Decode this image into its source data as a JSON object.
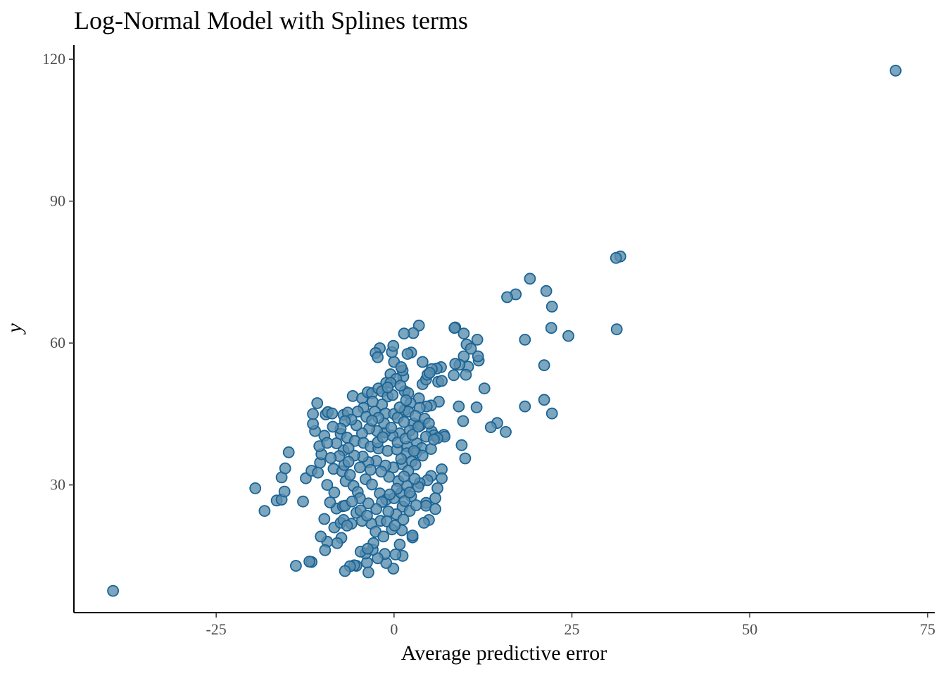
{
  "chart_data": {
    "type": "scatter",
    "title": "Log-Normal Model with Splines terms",
    "xlabel": "Average predictive error",
    "ylabel": "y",
    "xlim": [
      -45,
      76
    ],
    "ylim": [
      3,
      123
    ],
    "xticks": [
      -25,
      0,
      25,
      50,
      75
    ],
    "xtick_labels": [
      "-25",
      "0",
      "25",
      "50",
      "75"
    ],
    "yticks": [
      30,
      60,
      90,
      120
    ],
    "ytick_labels": [
      "30",
      "60",
      "90",
      "120"
    ],
    "grid": false,
    "legend": "none",
    "colors": {
      "point_fill": "#5b8fae",
      "point_stroke": "#1a6496",
      "axis": "#000000",
      "tick_text": "#4d4d4d"
    },
    "series": [
      {
        "points": [
          [
            70.5,
            117.6
          ],
          [
            -39.5,
            7.6
          ],
          [
            31.8,
            78.3
          ],
          [
            31.2,
            78.0
          ],
          [
            31.3,
            62.9
          ],
          [
            19.1,
            73.6
          ],
          [
            17.1,
            70.3
          ],
          [
            15.9,
            69.7
          ],
          [
            21.4,
            71.0
          ],
          [
            22.2,
            67.7
          ],
          [
            22.1,
            63.2
          ],
          [
            24.5,
            61.5
          ],
          [
            18.4,
            60.7
          ],
          [
            21.1,
            55.3
          ],
          [
            21.1,
            48.0
          ],
          [
            18.4,
            46.6
          ],
          [
            22.2,
            45.1
          ],
          [
            15.7,
            41.2
          ],
          [
            14.5,
            43.1
          ],
          [
            13.6,
            42.2
          ],
          [
            12.7,
            50.4
          ],
          [
            11.6,
            46.4
          ],
          [
            11.9,
            56.3
          ],
          [
            11.8,
            57.2
          ],
          [
            11.7,
            60.7
          ],
          [
            9.8,
            62.0
          ],
          [
            8.6,
            63.3
          ],
          [
            8.5,
            63.2
          ],
          [
            10.2,
            59.7
          ],
          [
            10.8,
            58.8
          ],
          [
            9.8,
            57.2
          ],
          [
            10.4,
            55.0
          ],
          [
            10.1,
            53.3
          ],
          [
            9.2,
            55.4
          ],
          [
            8.6,
            55.6
          ],
          [
            8.4,
            53.2
          ],
          [
            9.1,
            46.6
          ],
          [
            9.7,
            43.5
          ],
          [
            9.5,
            38.4
          ],
          [
            10.0,
            35.6
          ],
          [
            7.0,
            40.6
          ],
          [
            7.1,
            40.2
          ],
          [
            6.6,
            54.9
          ],
          [
            6.2,
            51.8
          ],
          [
            6.0,
            54.6
          ],
          [
            6.7,
            52.0
          ],
          [
            5.3,
            54.5
          ],
          [
            6.3,
            47.6
          ],
          [
            5.2,
            46.8
          ],
          [
            4.6,
            46.6
          ],
          [
            3.5,
            63.7
          ],
          [
            2.7,
            62.1
          ],
          [
            1.4,
            62.0
          ],
          [
            4.0,
            56.0
          ],
          [
            2.4,
            58.0
          ],
          [
            1.9,
            57.7
          ],
          [
            4.0,
            51.3
          ],
          [
            4.5,
            52.3
          ],
          [
            4.7,
            53.3
          ],
          [
            5.0,
            53.7
          ],
          [
            1.3,
            52.9
          ],
          [
            1.2,
            54.2
          ],
          [
            1.5,
            49.8
          ],
          [
            2.0,
            49.4
          ],
          [
            3.5,
            48.3
          ],
          [
            2.3,
            47.3
          ],
          [
            3.6,
            46.3
          ],
          [
            1.5,
            45.8
          ],
          [
            2.0,
            45.5
          ],
          [
            2.7,
            43.0
          ],
          [
            3.7,
            42.6
          ],
          [
            2.2,
            41.5
          ],
          [
            5.3,
            41.3
          ],
          [
            5.6,
            40.5
          ],
          [
            6.1,
            39.9
          ],
          [
            4.5,
            40.2
          ],
          [
            3.2,
            38.8
          ],
          [
            3.9,
            37.8
          ],
          [
            3.1,
            36.8
          ],
          [
            1.9,
            38.1
          ],
          [
            5.2,
            37.6
          ],
          [
            6.7,
            33.3
          ],
          [
            6.7,
            31.4
          ],
          [
            5.2,
            31.9
          ],
          [
            4.7,
            31.0
          ],
          [
            3.6,
            30.4
          ],
          [
            3.4,
            29.6
          ],
          [
            6.1,
            29.3
          ],
          [
            5.8,
            27.2
          ],
          [
            4.5,
            26.2
          ],
          [
            4.5,
            25.6
          ],
          [
            5.8,
            24.9
          ],
          [
            4.9,
            22.6
          ],
          [
            4.2,
            22.0
          ],
          [
            2.6,
            18.9
          ],
          [
            2.6,
            19.3
          ],
          [
            1.1,
            20.4
          ],
          [
            0.8,
            17.4
          ],
          [
            1.2,
            15.0
          ],
          [
            0.2,
            15.3
          ],
          [
            -0.1,
            12.3
          ],
          [
            -1.1,
            13.5
          ],
          [
            -1.3,
            15.4
          ],
          [
            -2.3,
            14.5
          ],
          [
            -3.0,
            16.3
          ],
          [
            -3.8,
            13.6
          ],
          [
            -3.6,
            11.5
          ],
          [
            -4.0,
            15.5
          ],
          [
            -4.7,
            15.9
          ],
          [
            -5.3,
            12.9
          ],
          [
            -5.6,
            13.0
          ],
          [
            -6.2,
            12.8
          ],
          [
            -6.9,
            11.8
          ],
          [
            -7.4,
            18.8
          ],
          [
            -8.0,
            17.7
          ],
          [
            -9.4,
            18.0
          ],
          [
            -9.7,
            16.2
          ],
          [
            -10.3,
            19.1
          ],
          [
            -11.6,
            13.7
          ],
          [
            -11.9,
            13.8
          ],
          [
            -13.8,
            12.9
          ],
          [
            -8.4,
            21.0
          ],
          [
            -7.5,
            22.0
          ],
          [
            -7.1,
            22.6
          ],
          [
            -8.1,
            25.0
          ],
          [
            -7.2,
            25.5
          ],
          [
            -6.9,
            25.6
          ],
          [
            -9.8,
            22.8
          ],
          [
            -12.8,
            26.5
          ],
          [
            -16.5,
            26.7
          ],
          [
            -15.8,
            26.9
          ],
          [
            -18.2,
            24.5
          ],
          [
            -19.5,
            29.3
          ],
          [
            -15.4,
            28.6
          ],
          [
            -15.8,
            31.6
          ],
          [
            -15.3,
            33.5
          ],
          [
            -14.8,
            36.9
          ],
          [
            -12.4,
            31.4
          ],
          [
            -11.6,
            33.0
          ],
          [
            -10.7,
            32.6
          ],
          [
            -10.4,
            34.7
          ],
          [
            -10.2,
            36.5
          ],
          [
            -10.5,
            38.2
          ],
          [
            -9.8,
            40.4
          ],
          [
            -9.4,
            30.0
          ],
          [
            -8.5,
            33.4
          ],
          [
            -7.3,
            32.9
          ],
          [
            -7.0,
            34.2
          ],
          [
            -7.1,
            37.3
          ],
          [
            -8.1,
            38.8
          ],
          [
            -7.5,
            40.8
          ],
          [
            -11.1,
            41.4
          ],
          [
            -11.4,
            42.9
          ],
          [
            -11.4,
            45.0
          ],
          [
            -9.6,
            44.9
          ],
          [
            -9.3,
            45.4
          ],
          [
            -10.8,
            47.3
          ],
          [
            -8.7,
            45.1
          ],
          [
            -7.1,
            44.8
          ],
          [
            -6.5,
            45.3
          ],
          [
            -5.8,
            48.8
          ],
          [
            -4.5,
            48.3
          ],
          [
            -3.7,
            49.6
          ],
          [
            -3.1,
            49.4
          ],
          [
            -2.2,
            50.4
          ],
          [
            -1.7,
            49.8
          ],
          [
            -1.1,
            51.6
          ],
          [
            -0.5,
            53.4
          ],
          [
            0.0,
            56.0
          ],
          [
            -0.3,
            58.1
          ],
          [
            -2.0,
            58.9
          ],
          [
            -2.6,
            57.9
          ],
          [
            -2.3,
            57.0
          ],
          [
            -0.1,
            59.4
          ],
          [
            1.0,
            54.9
          ],
          [
            0.3,
            52.4
          ],
          [
            -0.5,
            51.6
          ],
          [
            -0.9,
            48.7
          ],
          [
            -1.7,
            47.0
          ],
          [
            -3.0,
            47.6
          ],
          [
            -4.3,
            46.3
          ],
          [
            -5.1,
            45.5
          ],
          [
            -3.9,
            44.4
          ],
          [
            -2.7,
            45.5
          ],
          [
            -1.2,
            45.1
          ],
          [
            0.0,
            45.0
          ],
          [
            0.5,
            44.2
          ],
          [
            1.4,
            43.3
          ],
          [
            0.8,
            40.9
          ],
          [
            -0.2,
            40.4
          ],
          [
            -1.3,
            41.1
          ],
          [
            -2.4,
            41.4
          ],
          [
            -3.5,
            41.9
          ],
          [
            -4.5,
            40.9
          ],
          [
            -5.3,
            42.6
          ],
          [
            -6.0,
            43.8
          ],
          [
            -6.9,
            43.5
          ],
          [
            -7.5,
            41.9
          ],
          [
            -8.6,
            42.3
          ],
          [
            -6.6,
            40.0
          ],
          [
            -5.5,
            39.3
          ],
          [
            -4.3,
            38.9
          ],
          [
            -3.3,
            38.1
          ],
          [
            -2.2,
            37.7
          ],
          [
            -0.9,
            37.2
          ],
          [
            0.4,
            37.5
          ],
          [
            1.8,
            36.7
          ],
          [
            2.5,
            35.0
          ],
          [
            1.1,
            34.4
          ],
          [
            -0.1,
            33.7
          ],
          [
            -1.2,
            34.1
          ],
          [
            -2.5,
            35.1
          ],
          [
            -3.6,
            34.8
          ],
          [
            -4.4,
            36.0
          ],
          [
            -5.6,
            36.2
          ],
          [
            -6.4,
            37.8
          ],
          [
            -7.7,
            36.1
          ],
          [
            -6.8,
            30.8
          ],
          [
            -5.7,
            29.8
          ],
          [
            -5.1,
            28.5
          ],
          [
            -4.0,
            31.2
          ],
          [
            -3.1,
            30.1
          ],
          [
            -2.0,
            28.2
          ],
          [
            -1.1,
            26.9
          ],
          [
            0.0,
            27.2
          ],
          [
            1.0,
            28.3
          ],
          [
            1.8,
            29.8
          ],
          [
            2.9,
            31.3
          ],
          [
            2.4,
            27.6
          ],
          [
            1.2,
            25.4
          ],
          [
            0.3,
            23.8
          ],
          [
            -0.8,
            24.4
          ],
          [
            -1.9,
            22.4
          ],
          [
            -3.2,
            21.8
          ],
          [
            -4.5,
            22.4
          ],
          [
            -5.3,
            24.1
          ],
          [
            -6.0,
            21.8
          ],
          [
            -6.6,
            21.4
          ],
          [
            -4.7,
            24.6
          ],
          [
            -3.8,
            23.5
          ],
          [
            -2.6,
            20.1
          ],
          [
            -1.5,
            19.1
          ],
          [
            -0.3,
            20.6
          ],
          [
            -2.9,
            17.7
          ],
          [
            -3.7,
            16.5
          ],
          [
            1.5,
            26.6
          ],
          [
            2.2,
            28.4
          ],
          [
            0.6,
            30.8
          ],
          [
            -0.7,
            31.7
          ],
          [
            -1.8,
            32.8
          ],
          [
            -3.3,
            33.2
          ],
          [
            -4.8,
            33.7
          ],
          [
            -6.2,
            32.1
          ],
          [
            0.5,
            39.0
          ],
          [
            1.6,
            39.8
          ],
          [
            2.6,
            40.6
          ],
          [
            -1.4,
            43.0
          ],
          [
            -2.2,
            44.2
          ],
          [
            -3.1,
            43.6
          ],
          [
            0.8,
            46.4
          ],
          [
            1.7,
            47.9
          ],
          [
            -0.2,
            49.0
          ],
          [
            -0.9,
            50.6
          ],
          [
            0.9,
            51.0
          ],
          [
            3.0,
            44.6
          ],
          [
            4.3,
            44.0
          ],
          [
            4.9,
            43.0
          ],
          [
            5.6,
            39.6
          ],
          [
            4.0,
            36.2
          ],
          [
            3.0,
            34.3
          ],
          [
            2.0,
            33.0
          ],
          [
            1.4,
            31.8
          ],
          [
            0.4,
            29.2
          ],
          [
            -0.6,
            28.0
          ],
          [
            -1.7,
            26.4
          ],
          [
            -2.5,
            24.9
          ],
          [
            -3.6,
            26.1
          ],
          [
            -4.8,
            27.2
          ],
          [
            -5.9,
            26.5
          ],
          [
            -1.0,
            22.3
          ],
          [
            0.1,
            21.4
          ],
          [
            1.3,
            22.7
          ],
          [
            2.2,
            24.5
          ],
          [
            3.1,
            25.7
          ],
          [
            -6.4,
            34.9
          ],
          [
            -8.9,
            35.7
          ],
          [
            -9.4,
            38.9
          ],
          [
            -8.4,
            28.4
          ],
          [
            -9.0,
            26.3
          ],
          [
            -2.3,
            39.0
          ],
          [
            -1.6,
            40.1
          ],
          [
            -0.4,
            42.1
          ],
          [
            3.4,
            42.3
          ],
          [
            2.8,
            37.2
          ],
          [
            1.0,
            35.5
          ]
        ]
      }
    ]
  }
}
